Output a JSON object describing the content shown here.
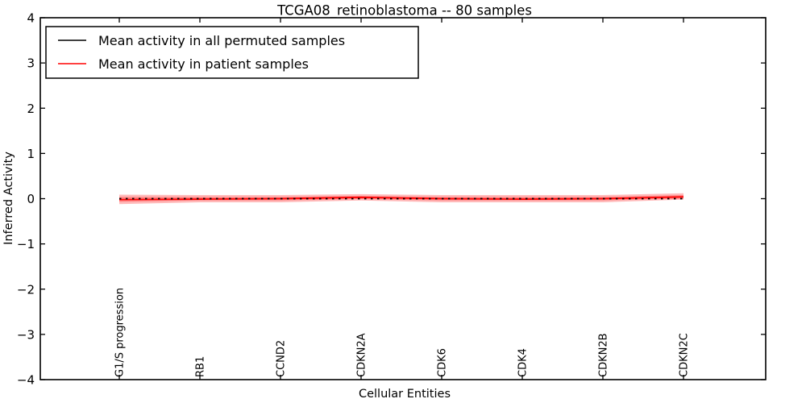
{
  "title": "TCGA08_retinoblastoma -- 80 samples",
  "legend": {
    "items": [
      {
        "label": "Mean activity in all permuted samples",
        "color": "#000000"
      },
      {
        "label": "Mean activity in patient samples",
        "color": "#ff0000"
      }
    ]
  },
  "colors": {
    "band": "#ff0000",
    "permuted_line": "#000000",
    "patient_line": "#ff0000",
    "spine": "#000000"
  },
  "chart_data": {
    "type": "line",
    "title": "TCGA08_retinoblastoma -- 80 samples",
    "xlabel": "Cellular Entities",
    "ylabel": "Inferred Activity",
    "ylim": [
      -4,
      4
    ],
    "yticks": [
      4,
      3,
      2,
      1,
      0,
      -1,
      -2,
      -3,
      -4
    ],
    "grid": false,
    "legend_position": "upper left",
    "categories": [
      "G1/S progression",
      "RB1",
      "CCND2",
      "CDKN2A",
      "CDK6",
      "CDK4",
      "CDKN2B",
      "CDKN2C"
    ],
    "series": [
      {
        "name": "Mean activity in all permuted samples",
        "color": "#000000",
        "style": "dotted",
        "values": [
          0.0,
          0.0,
          0.0,
          0.0,
          0.0,
          0.0,
          0.0,
          0.0
        ]
      },
      {
        "name": "Mean activity in patient samples",
        "color": "#ff0000",
        "style": "solid",
        "values": [
          -0.02,
          -0.01,
          0.0,
          0.03,
          0.0,
          -0.01,
          0.0,
          0.04
        ]
      }
    ],
    "bands": [
      {
        "name": "outer-confidence-band",
        "color": "#ff0000",
        "alpha": 0.27,
        "upper": [
          0.09,
          0.08,
          0.08,
          0.1,
          0.08,
          0.08,
          0.08,
          0.12
        ],
        "lower": [
          -0.12,
          -0.08,
          -0.08,
          -0.04,
          -0.08,
          -0.08,
          -0.08,
          -0.02
        ]
      },
      {
        "name": "inner-confidence-band",
        "color": "#ff0000",
        "alpha": 0.27,
        "upper": [
          0.04,
          0.04,
          0.04,
          0.06,
          0.04,
          0.04,
          0.04,
          0.08
        ],
        "lower": [
          -0.07,
          -0.04,
          -0.04,
          -0.01,
          -0.04,
          -0.04,
          -0.04,
          0.0
        ]
      }
    ]
  }
}
